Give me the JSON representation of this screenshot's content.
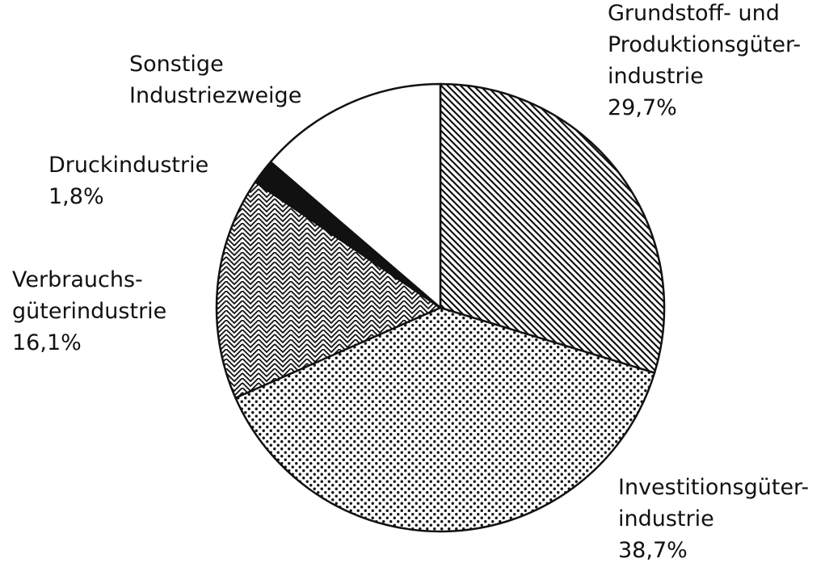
{
  "chart_data": {
    "type": "pie",
    "categories": [
      "Grundstoff- und\nProduktionsgüter-\nindustrie",
      "Investitionsgüter-\nindustrie",
      "Verbrauchs-\ngüterindustrie",
      "Druckindustrie",
      "Sonstige\nIndustriezweige"
    ],
    "values": [
      29.7,
      38.7,
      16.1,
      1.8,
      13.7
    ],
    "value_labels": [
      "29,7%",
      "38,7%",
      "16,1%",
      "1,8%",
      null
    ]
  }
}
